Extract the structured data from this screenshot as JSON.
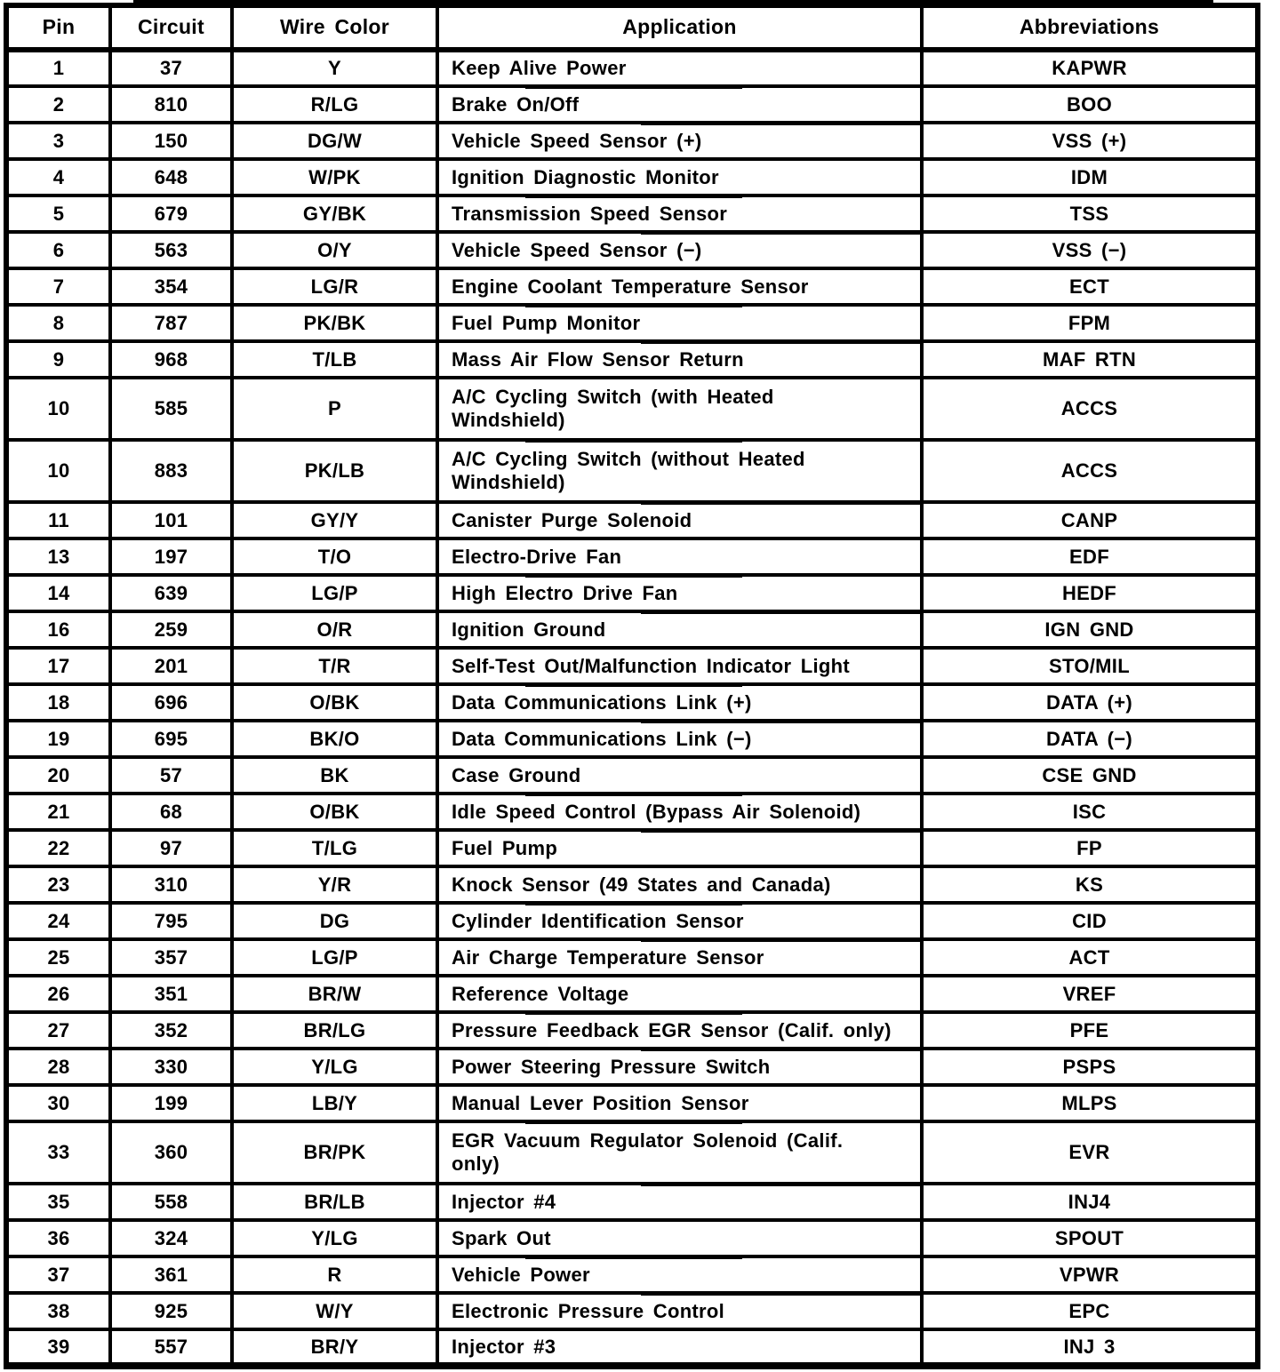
{
  "colors": {
    "ink": "#000000",
    "paper": "#ffffff"
  },
  "header": {
    "columns": [
      "Pin",
      "Circuit",
      "Wire Color",
      "Application",
      "Abbreviations"
    ]
  },
  "rows": [
    {
      "pin": "1",
      "circuit": "37",
      "wire_color": "Y",
      "application": "Keep Alive Power",
      "abbreviation": "KAPWR"
    },
    {
      "pin": "2",
      "circuit": "810",
      "wire_color": "R/LG",
      "application": "Brake On/Off",
      "abbreviation": "BOO"
    },
    {
      "pin": "3",
      "circuit": "150",
      "wire_color": "DG/W",
      "application": "Vehicle Speed Sensor (+)",
      "abbreviation": "VSS (+)"
    },
    {
      "pin": "4",
      "circuit": "648",
      "wire_color": "W/PK",
      "application": "Ignition Diagnostic Monitor",
      "abbreviation": "IDM"
    },
    {
      "pin": "5",
      "circuit": "679",
      "wire_color": "GY/BK",
      "application": "Transmission Speed Sensor",
      "abbreviation": "TSS"
    },
    {
      "pin": "6",
      "circuit": "563",
      "wire_color": "O/Y",
      "application": "Vehicle Speed Sensor (−)",
      "abbreviation": "VSS (−)"
    },
    {
      "pin": "7",
      "circuit": "354",
      "wire_color": "LG/R",
      "application": "Engine Coolant Temperature Sensor",
      "abbreviation": "ECT"
    },
    {
      "pin": "8",
      "circuit": "787",
      "wire_color": "PK/BK",
      "application": "Fuel Pump Monitor",
      "abbreviation": "FPM"
    },
    {
      "pin": "9",
      "circuit": "968",
      "wire_color": "T/LB",
      "application": "Mass Air Flow Sensor Return",
      "abbreviation": "MAF RTN"
    },
    {
      "pin": "10",
      "circuit": "585",
      "wire_color": "P",
      "application": "A/C Cycling Switch (with Heated\nWindshield)",
      "abbreviation": "ACCS"
    },
    {
      "pin": "10",
      "circuit": "883",
      "wire_color": "PK/LB",
      "application": "A/C Cycling Switch (without Heated\nWindshield)",
      "abbreviation": "ACCS"
    },
    {
      "pin": "11",
      "circuit": "101",
      "wire_color": "GY/Y",
      "application": "Canister Purge Solenoid",
      "abbreviation": "CANP"
    },
    {
      "pin": "13",
      "circuit": "197",
      "wire_color": "T/O",
      "application": "Electro-Drive Fan",
      "abbreviation": "EDF"
    },
    {
      "pin": "14",
      "circuit": "639",
      "wire_color": "LG/P",
      "application": "High Electro Drive Fan",
      "abbreviation": "HEDF"
    },
    {
      "pin": "16",
      "circuit": "259",
      "wire_color": "O/R",
      "application": "Ignition Ground",
      "abbreviation": "IGN GND"
    },
    {
      "pin": "17",
      "circuit": "201",
      "wire_color": "T/R",
      "application": "Self-Test Out/Malfunction Indicator Light",
      "abbreviation": "STO/MIL"
    },
    {
      "pin": "18",
      "circuit": "696",
      "wire_color": "O/BK",
      "application": "Data Communications Link (+)",
      "abbreviation": "DATA (+)"
    },
    {
      "pin": "19",
      "circuit": "695",
      "wire_color": "BK/O",
      "application": "Data Communications Link (−)",
      "abbreviation": "DATA (−)"
    },
    {
      "pin": "20",
      "circuit": "57",
      "wire_color": "BK",
      "application": "Case Ground",
      "abbreviation": "CSE GND"
    },
    {
      "pin": "21",
      "circuit": "68",
      "wire_color": "O/BK",
      "application": "Idle Speed Control (Bypass Air Solenoid)",
      "abbreviation": "ISC"
    },
    {
      "pin": "22",
      "circuit": "97",
      "wire_color": "T/LG",
      "application": "Fuel Pump",
      "abbreviation": "FP"
    },
    {
      "pin": "23",
      "circuit": "310",
      "wire_color": "Y/R",
      "application": "Knock Sensor (49 States and Canada)",
      "abbreviation": "KS"
    },
    {
      "pin": "24",
      "circuit": "795",
      "wire_color": "DG",
      "application": "Cylinder Identification Sensor",
      "abbreviation": "CID"
    },
    {
      "pin": "25",
      "circuit": "357",
      "wire_color": "LG/P",
      "application": "Air Charge Temperature Sensor",
      "abbreviation": "ACT"
    },
    {
      "pin": "26",
      "circuit": "351",
      "wire_color": "BR/W",
      "application": "Reference Voltage",
      "abbreviation": "VREF"
    },
    {
      "pin": "27",
      "circuit": "352",
      "wire_color": "BR/LG",
      "application": "Pressure Feedback EGR Sensor (Calif. only)",
      "abbreviation": "PFE"
    },
    {
      "pin": "28",
      "circuit": "330",
      "wire_color": "Y/LG",
      "application": "Power Steering Pressure Switch",
      "abbreviation": "PSPS"
    },
    {
      "pin": "30",
      "circuit": "199",
      "wire_color": "LB/Y",
      "application": "Manual Lever Position Sensor",
      "abbreviation": "MLPS"
    },
    {
      "pin": "33",
      "circuit": "360",
      "wire_color": "BR/PK",
      "application": "EGR Vacuum Regulator Solenoid (Calif.\nonly)",
      "abbreviation": "EVR"
    },
    {
      "pin": "35",
      "circuit": "558",
      "wire_color": "BR/LB",
      "application": "Injector #4",
      "abbreviation": "INJ4"
    },
    {
      "pin": "36",
      "circuit": "324",
      "wire_color": "Y/LG",
      "application": "Spark Out",
      "abbreviation": "SPOUT"
    },
    {
      "pin": "37",
      "circuit": "361",
      "wire_color": "R",
      "application": "Vehicle Power",
      "abbreviation": "VPWR"
    },
    {
      "pin": "38",
      "circuit": "925",
      "wire_color": "W/Y",
      "application": "Electronic Pressure Control",
      "abbreviation": "EPC"
    },
    {
      "pin": "39",
      "circuit": "557",
      "wire_color": "BR/Y",
      "application": "Injector #3",
      "abbreviation": "INJ 3"
    }
  ]
}
